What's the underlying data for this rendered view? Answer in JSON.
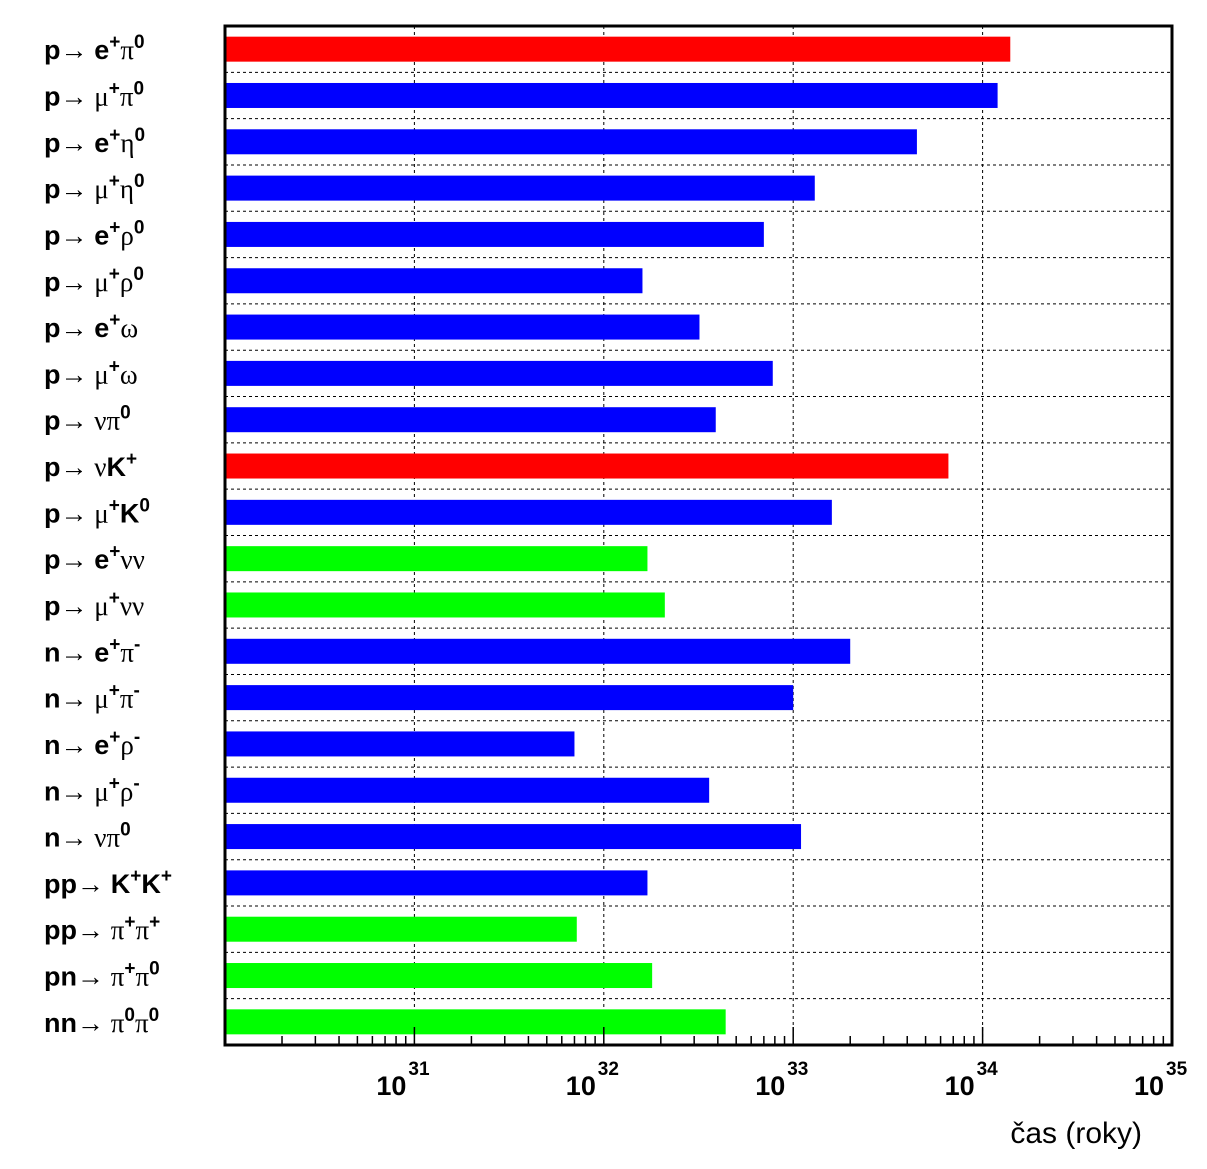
{
  "chart_data": {
    "type": "bar",
    "orientation": "horizontal",
    "x_scale": "log",
    "xlim": [
      1e+30,
      1e+35
    ],
    "xlabel": "čas (roky)",
    "grid": true,
    "colors": {
      "red": "#ff0000",
      "blue": "#0000ff",
      "green": "#00ff00"
    },
    "ticks": [
      {
        "base": "10",
        "exp": "31"
      },
      {
        "base": "10",
        "exp": "32"
      },
      {
        "base": "10",
        "exp": "33"
      },
      {
        "base": "10",
        "exp": "34"
      },
      {
        "base": "10",
        "exp": "35"
      }
    ],
    "bars": [
      {
        "label": "p→ e⁺π⁰",
        "parts": [
          [
            "b",
            "p"
          ],
          [
            "s",
            "→ "
          ],
          [
            "b",
            "e"
          ],
          [
            "bsup",
            "+"
          ],
          [
            "s",
            "π"
          ],
          [
            "bsup",
            "0"
          ]
        ],
        "value": 1.4e+34,
        "color": "red"
      },
      {
        "label": "p→ μ⁺π⁰",
        "parts": [
          [
            "b",
            "p"
          ],
          [
            "s",
            "→ μ"
          ],
          [
            "bsup",
            "+"
          ],
          [
            "s",
            "π"
          ],
          [
            "bsup",
            "0"
          ]
        ],
        "value": 1.2e+34,
        "color": "blue"
      },
      {
        "label": "p→ e⁺η⁰",
        "parts": [
          [
            "b",
            "p"
          ],
          [
            "s",
            "→ "
          ],
          [
            "b",
            "e"
          ],
          [
            "bsup",
            "+"
          ],
          [
            "s",
            "η"
          ],
          [
            "bsup",
            "0"
          ]
        ],
        "value": 4.5e+33,
        "color": "blue"
      },
      {
        "label": "p→ μ⁺η⁰",
        "parts": [
          [
            "b",
            "p"
          ],
          [
            "s",
            "→ μ"
          ],
          [
            "bsup",
            "+"
          ],
          [
            "s",
            "η"
          ],
          [
            "bsup",
            "0"
          ]
        ],
        "value": 1.3e+33,
        "color": "blue"
      },
      {
        "label": "p→ e⁺ρ⁰",
        "parts": [
          [
            "b",
            "p"
          ],
          [
            "s",
            "→ "
          ],
          [
            "b",
            "e"
          ],
          [
            "bsup",
            "+"
          ],
          [
            "s",
            "ρ"
          ],
          [
            "bsup",
            "0"
          ]
        ],
        "value": 7e+32,
        "color": "blue"
      },
      {
        "label": "p→ μ⁺ρ⁰",
        "parts": [
          [
            "b",
            "p"
          ],
          [
            "s",
            "→ μ"
          ],
          [
            "bsup",
            "+"
          ],
          [
            "s",
            "ρ"
          ],
          [
            "bsup",
            "0"
          ]
        ],
        "value": 1.6e+32,
        "color": "blue"
      },
      {
        "label": "p→ e⁺ω",
        "parts": [
          [
            "b",
            "p"
          ],
          [
            "s",
            "→ "
          ],
          [
            "b",
            "e"
          ],
          [
            "bsup",
            "+"
          ],
          [
            "s",
            "ω"
          ]
        ],
        "value": 3.2e+32,
        "color": "blue"
      },
      {
        "label": "p→ μ⁺ω",
        "parts": [
          [
            "b",
            "p"
          ],
          [
            "s",
            "→ μ"
          ],
          [
            "bsup",
            "+"
          ],
          [
            "s",
            "ω"
          ]
        ],
        "value": 7.8e+32,
        "color": "blue"
      },
      {
        "label": "p→ νπ⁰",
        "parts": [
          [
            "b",
            "p"
          ],
          [
            "s",
            "→ νπ"
          ],
          [
            "bsup",
            "0"
          ]
        ],
        "value": 3.9e+32,
        "color": "blue"
      },
      {
        "label": "p→ νK⁺",
        "parts": [
          [
            "b",
            "p"
          ],
          [
            "s",
            "→ ν"
          ],
          [
            "b",
            "K"
          ],
          [
            "bsup",
            "+"
          ]
        ],
        "value": 6.6e+33,
        "color": "red"
      },
      {
        "label": "p→ μ⁺K⁰",
        "parts": [
          [
            "b",
            "p"
          ],
          [
            "s",
            "→ μ"
          ],
          [
            "bsup",
            "+"
          ],
          [
            "b",
            "K"
          ],
          [
            "bsup",
            "0"
          ]
        ],
        "value": 1.6e+33,
        "color": "blue"
      },
      {
        "label": "p→ e⁺νν",
        "parts": [
          [
            "b",
            "p"
          ],
          [
            "s",
            "→ "
          ],
          [
            "b",
            "e"
          ],
          [
            "bsup",
            "+"
          ],
          [
            "s",
            "νν"
          ]
        ],
        "value": 1.7e+32,
        "color": "green"
      },
      {
        "label": "p→ μ⁺νν",
        "parts": [
          [
            "b",
            "p"
          ],
          [
            "s",
            "→ μ"
          ],
          [
            "bsup",
            "+"
          ],
          [
            "s",
            "νν"
          ]
        ],
        "value": 2.1e+32,
        "color": "green"
      },
      {
        "label": "n→ e⁺π⁻",
        "parts": [
          [
            "b",
            "n"
          ],
          [
            "s",
            "→ "
          ],
          [
            "b",
            "e"
          ],
          [
            "bsup",
            "+"
          ],
          [
            "s",
            "π"
          ],
          [
            "bsup",
            "-"
          ]
        ],
        "value": 2e+33,
        "color": "blue"
      },
      {
        "label": "n→ μ⁺π⁻",
        "parts": [
          [
            "b",
            "n"
          ],
          [
            "s",
            "→ μ"
          ],
          [
            "bsup",
            "+"
          ],
          [
            "s",
            "π"
          ],
          [
            "bsup",
            "-"
          ]
        ],
        "value": 1e+33,
        "color": "blue"
      },
      {
        "label": "n→ e⁺ρ⁻",
        "parts": [
          [
            "b",
            "n"
          ],
          [
            "s",
            "→ "
          ],
          [
            "b",
            "e"
          ],
          [
            "bsup",
            "+"
          ],
          [
            "s",
            "ρ"
          ],
          [
            "bsup",
            "-"
          ]
        ],
        "value": 7e+31,
        "color": "blue"
      },
      {
        "label": "n→ μ⁺ρ⁻",
        "parts": [
          [
            "b",
            "n"
          ],
          [
            "s",
            "→ μ"
          ],
          [
            "bsup",
            "+"
          ],
          [
            "s",
            "ρ"
          ],
          [
            "bsup",
            "-"
          ]
        ],
        "value": 3.6e+32,
        "color": "blue"
      },
      {
        "label": "n→ νπ⁰",
        "parts": [
          [
            "b",
            "n"
          ],
          [
            "s",
            "→ νπ"
          ],
          [
            "bsup",
            "0"
          ]
        ],
        "value": 1.1e+33,
        "color": "blue"
      },
      {
        "label": "pp→ K⁺K⁺",
        "parts": [
          [
            "b",
            "pp"
          ],
          [
            "s",
            "→ "
          ],
          [
            "b",
            "K"
          ],
          [
            "bsup",
            "+"
          ],
          [
            "b",
            "K"
          ],
          [
            "bsup",
            "+"
          ]
        ],
        "value": 1.7e+32,
        "color": "blue"
      },
      {
        "label": "pp→ π⁺π⁺",
        "parts": [
          [
            "b",
            "pp"
          ],
          [
            "s",
            "→ π"
          ],
          [
            "bsup",
            "+"
          ],
          [
            "s",
            "π"
          ],
          [
            "bsup",
            "+"
          ]
        ],
        "value": 7.2e+31,
        "color": "green"
      },
      {
        "label": "pn→ π⁺π⁰",
        "parts": [
          [
            "b",
            "pn"
          ],
          [
            "s",
            "→ π"
          ],
          [
            "bsup",
            "+"
          ],
          [
            "s",
            "π"
          ],
          [
            "bsup",
            "0"
          ]
        ],
        "value": 1.8e+32,
        "color": "green"
      },
      {
        "label": "nn→ π⁰π⁰",
        "parts": [
          [
            "b",
            "nn"
          ],
          [
            "s",
            "→ π"
          ],
          [
            "bsup",
            "0"
          ],
          [
            "s",
            "π"
          ],
          [
            "bsup",
            "0"
          ]
        ],
        "value": 4.4e+32,
        "color": "green"
      }
    ]
  }
}
